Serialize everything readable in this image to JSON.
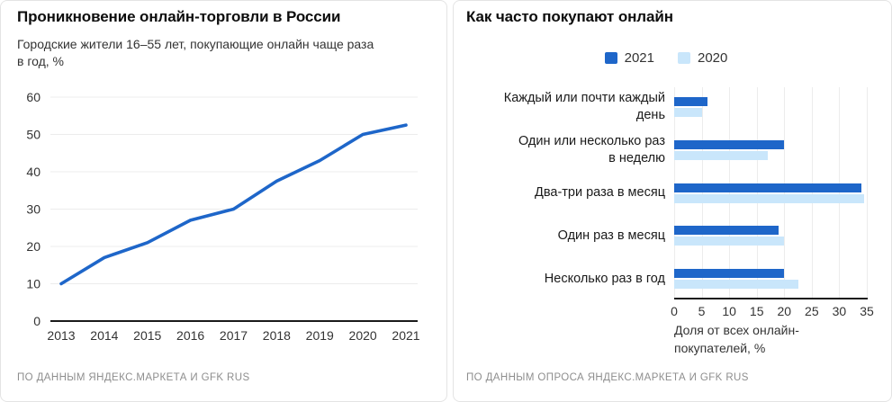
{
  "colors": {
    "accent": "#1e66c9",
    "accent_light": "#c9e6fb",
    "grid": "#ececec",
    "axis": "#1a1a1a",
    "text": "#333333",
    "muted": "#8e8e8e",
    "card_border": "#e4e4e4"
  },
  "chart_data": [
    {
      "type": "line",
      "title": "Проникновение онлайн-торговли в России",
      "subtitle": "Городские жители 16–55 лет, покупающие онлайн чаще раза в год, %",
      "subtitle_lines": [
        "Городские жители 16–55 лет, покупающие онлайн чаще раза",
        "в год, %"
      ],
      "x": [
        2013,
        2014,
        2015,
        2016,
        2017,
        2018,
        2019,
        2020,
        2021
      ],
      "values": [
        10,
        17,
        21,
        27,
        30,
        37.5,
        43,
        50,
        52.5
      ],
      "ylim": [
        0,
        60
      ],
      "yticks": [
        0,
        10,
        20,
        30,
        40,
        50,
        60
      ],
      "grid": "horizontal",
      "line_color": "#1e66c9",
      "source": "ПО ДАННЫМ ЯНДЕКС.МАРКЕТА И GFK RUS"
    },
    {
      "type": "bar",
      "orientation": "horizontal",
      "title": "Как часто покупают онлайн",
      "categories": [
        [
          "Каждый или почти каждый",
          "день"
        ],
        [
          "Один или несколько раз",
          "в неделю"
        ],
        [
          "Два-три раза в месяц"
        ],
        [
          "Один раз в месяц"
        ],
        [
          "Несколько раз в год"
        ]
      ],
      "series": [
        {
          "name": "2021",
          "color": "#1e66c9",
          "values": [
            6,
            20,
            34,
            19,
            20
          ]
        },
        {
          "name": "2020",
          "color": "#c9e6fb",
          "values": [
            5,
            17,
            34.5,
            20,
            22.5
          ]
        }
      ],
      "xlim": [
        0,
        35
      ],
      "xticks": [
        0,
        5,
        10,
        15,
        20,
        25,
        30,
        35
      ],
      "xlabel": "Доля от всех онлайн-покупателей, %",
      "xlabel_lines": [
        "Доля от всех онлайн-",
        "покупателей, %"
      ],
      "legend_position": "top",
      "grid": "vertical",
      "source": "ПО ДАННЫМ ОПРОСА ЯНДЕКС.МАРКЕТА И GFK RUS"
    }
  ]
}
